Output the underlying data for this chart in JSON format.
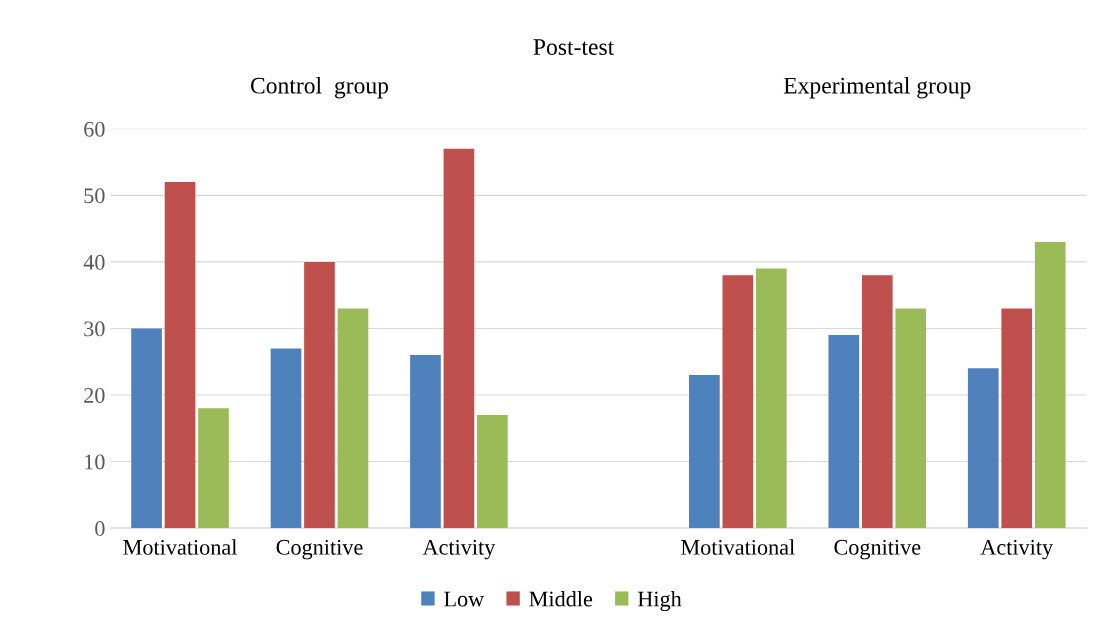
{
  "chart_data": {
    "type": "bar",
    "title": "Post-test",
    "annotations": [
      "Control  group",
      "Experimental group"
    ],
    "categories": [
      "Motivational",
      "Cognitive",
      "Activity",
      null,
      "Motivational",
      "Cognitive",
      "Activity"
    ],
    "series": [
      {
        "name": "Low",
        "color": "#4f81bd",
        "values": [
          30,
          27,
          26,
          null,
          23,
          29,
          24
        ]
      },
      {
        "name": "Middle",
        "color": "#c0504d",
        "values": [
          52,
          40,
          57,
          null,
          38,
          38,
          33
        ]
      },
      {
        "name": "High",
        "color": "#9bbb59",
        "values": [
          18,
          33,
          17,
          null,
          39,
          33,
          43
        ]
      }
    ],
    "ylim": [
      0,
      60
    ],
    "yticks": [
      0,
      10,
      20,
      30,
      40,
      50,
      60
    ],
    "grid": "y",
    "legend": "bottom"
  }
}
